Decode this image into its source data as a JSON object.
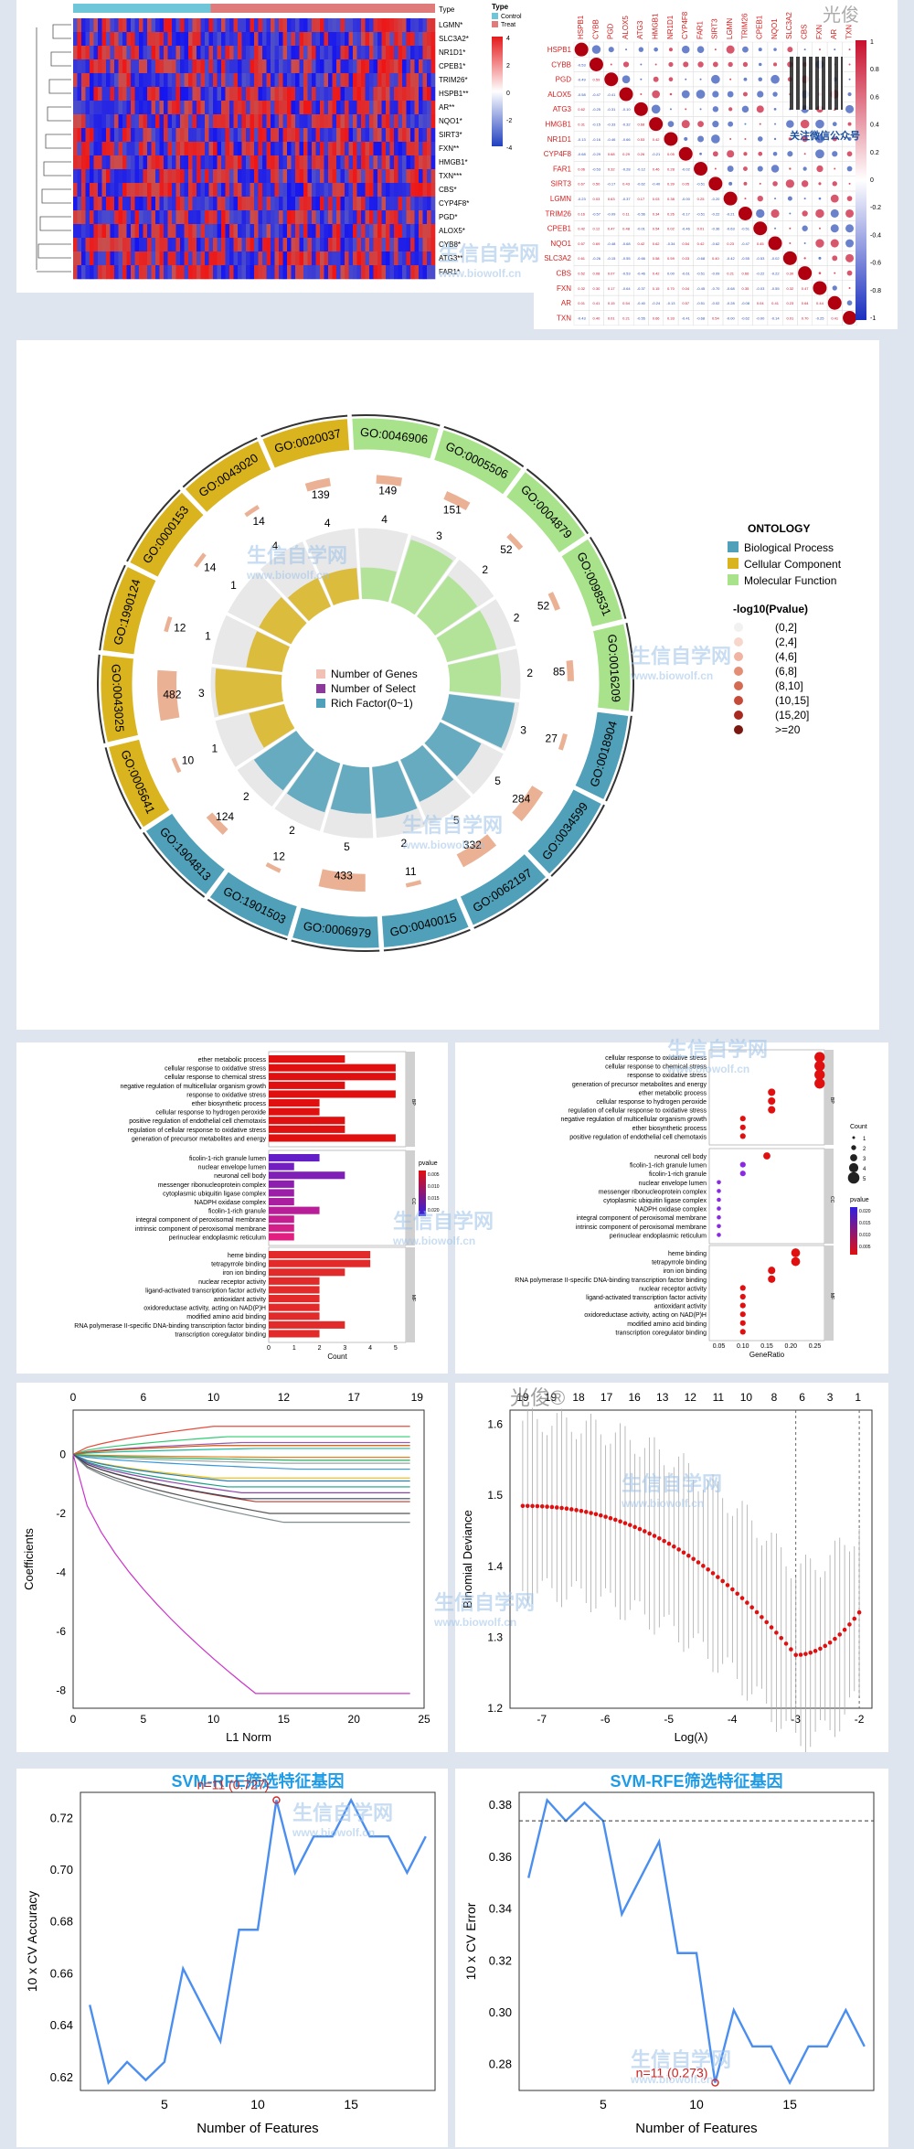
{
  "watermark": {
    "brand": "生信自学网",
    "url": "www.biowolf.cn",
    "author": "光俊",
    "qr_caption": "关注微信公众号"
  },
  "panels": {
    "heatmap": {
      "genes": [
        "LGMN*",
        "SLC3A2*",
        "NR1D1*",
        "CPEB1*",
        "TRIM26*",
        "HSPB1**",
        "AR**",
        "NQO1*",
        "SIRT3*",
        "FXN**",
        "HMGB1*",
        "TXN***",
        "CBS*",
        "CYP4F8*",
        "PGD*",
        "ALOX5*",
        "CYB8*",
        "ATG3**",
        "FAR1*"
      ],
      "type_label": "Type",
      "legend_title": "Type",
      "legend_items": [
        {
          "name": "Control",
          "color": "#6fc6d9"
        },
        {
          "name": "Treat",
          "color": "#e07b7b"
        }
      ],
      "scale_ticks": [
        "4",
        "2",
        "0",
        "-2",
        "-4"
      ]
    },
    "corr": {
      "genes": [
        "HSPB1",
        "CYBB",
        "PGD",
        "ALOX5",
        "ATG3",
        "HMGB1",
        "NR1D1",
        "CYP4F8",
        "FAR1",
        "SIRT3",
        "LGMN",
        "TRIM26",
        "CPEB1",
        "NQO1",
        "SLC3A2",
        "CBS",
        "FXN",
        "AR",
        "TXN"
      ],
      "scale_ticks": [
        "1",
        "0.8",
        "0.6",
        "0.4",
        "0.2",
        "0",
        "-0.2",
        "-0.4",
        "-0.6",
        "-0.8",
        "-1"
      ]
    },
    "circos": {
      "legend_title": "ONTOLOGY",
      "ontology": [
        {
          "name": "Biological Process",
          "color": "#4fa0b8"
        },
        {
          "name": "Cellular Component",
          "color": "#d9b41f"
        },
        {
          "name": "Molecular Function",
          "color": "#a8e28a"
        }
      ],
      "pvalue_title": "-log10(Pvalue)",
      "pvalue_bins": [
        "(0,2]",
        "(2,4]",
        "(4,6]",
        "(6,8]",
        "(8,10]",
        "(10,15]",
        "(15,20]",
        ">=20"
      ],
      "inner_legend": [
        "Number of Genes",
        "Number of Select",
        "Rich Factor(0~1)"
      ],
      "sectors": [
        {
          "id": "GO:0046906",
          "genes": 149,
          "select": 4
        },
        {
          "id": "GO:0005506",
          "genes": 151,
          "select": 3
        },
        {
          "id": "GO:0004879",
          "genes": 52,
          "select": 2
        },
        {
          "id": "GO:0098531",
          "genes": 52,
          "select": 2
        },
        {
          "id": "GO:0016209",
          "genes": 85,
          "select": 2
        },
        {
          "id": "GO:0018904",
          "genes": 27,
          "select": 3
        },
        {
          "id": "GO:0034599",
          "genes": 284,
          "select": 5
        },
        {
          "id": "GO:0062197",
          "genes": 332,
          "select": 5
        },
        {
          "id": "GO:0040015",
          "genes": 11,
          "select": 2
        },
        {
          "id": "GO:0006979",
          "genes": 433,
          "select": 5
        },
        {
          "id": "GO:1901503",
          "genes": 12,
          "select": 2
        },
        {
          "id": "GO:1904813",
          "genes": 124,
          "select": 2
        },
        {
          "id": "GO:0005641",
          "genes": 10,
          "select": 1
        },
        {
          "id": "GO:0043025",
          "genes": 482,
          "select": 3
        },
        {
          "id": "GO:1990124",
          "genes": 12,
          "select": 1
        },
        {
          "id": "GO:0000153",
          "genes": 14,
          "select": 1
        },
        {
          "id": "GO:0043020",
          "genes": 14,
          "select": 4
        },
        {
          "id": "GO:0020037",
          "genes": 139,
          "select": 4
        }
      ]
    },
    "go": {
      "bp_terms": [
        "ether metabolic process",
        "cellular response to oxidative stress",
        "cellular response to chemical stress",
        "negative regulation of multicellular organism growth",
        "response to oxidative stress",
        "ether biosynthetic process",
        "cellular response to hydrogen peroxide",
        "positive regulation of endothelial cell chemotaxis",
        "regulation of cellular response to oxidative stress",
        "generation of precursor metabolites and energy"
      ],
      "cc_terms": [
        "ficolin-1-rich granule lumen",
        "nuclear envelope lumen",
        "neuronal cell body",
        "messenger ribonucleoprotein complex",
        "cytoplasmic ubiquitin ligase complex",
        "NADPH oxidase complex",
        "ficolin-1-rich granule",
        "integral component of peroxisomal membrane",
        "intrinsic component of peroxisomal membrane",
        "perinuclear endoplasmic reticulum"
      ],
      "mf_terms": [
        "heme binding",
        "tetrapyrrole binding",
        "iron ion binding",
        "nuclear receptor activity",
        "ligand-activated transcription factor activity",
        "antioxidant activity",
        "oxidoreductase activity, acting on NAD(P)H",
        "modified amino acid binding",
        "RNA polymerase II-specific DNA-binding transcription factor binding",
        "transcription coregulator binding"
      ],
      "bp_counts": [
        3,
        5,
        5,
        3,
        5,
        2,
        2,
        3,
        3,
        5
      ],
      "cc_counts": [
        2,
        1,
        3,
        1,
        1,
        1,
        2,
        1,
        1,
        1
      ],
      "mf_counts": [
        4,
        4,
        3,
        2,
        2,
        2,
        2,
        2,
        3,
        2
      ],
      "bubble_bp_terms": [
        "cellular response to oxidative stress",
        "cellular response to chemical stress",
        "response to oxidative stress",
        "generation of precursor metabolites and energy",
        "ether metabolic process",
        "cellular response to hydrogen peroxide",
        "regulation of cellular response to oxidative stress",
        "negative regulation of multicellular organism growth",
        "ether biosynthetic process",
        "positive regulation of endothelial cell chemotaxis"
      ],
      "bubble_cc_terms": [
        "neuronal cell body",
        "ficolin-1-rich granule lumen",
        "ficolin-1-rich granule",
        "nuclear envelope lumen",
        "messenger ribonucleoprotein complex",
        "cytoplasmic ubiquitin ligase complex",
        "NADPH oxidase complex",
        "integral component of peroxisomal membrane",
        "intrinsic component of peroxisomal membrane",
        "perinuclear endoplasmic reticulum"
      ],
      "bubble_mf_terms": [
        "heme binding",
        "tetrapyrrole binding",
        "iron ion binding",
        "RNA polymerase II-specific DNA-binding transcription factor binding",
        "nuclear receptor activity",
        "ligand-activated transcription factor activity",
        "antioxidant activity",
        "oxidoreductase activity, acting on NAD(P)H",
        "modified amino acid binding",
        "transcription coregulator binding"
      ],
      "bubble_bp_ratio": [
        0.26,
        0.26,
        0.26,
        0.26,
        0.16,
        0.16,
        0.16,
        0.1,
        0.1,
        0.1
      ],
      "bubble_cc_ratio": [
        0.15,
        0.1,
        0.1,
        0.05,
        0.05,
        0.05,
        0.05,
        0.05,
        0.05,
        0.05
      ],
      "bubble_mf_ratio": [
        0.21,
        0.21,
        0.16,
        0.16,
        0.1,
        0.1,
        0.1,
        0.1,
        0.1,
        0.1
      ],
      "facets": [
        "BP",
        "CC",
        "MF"
      ],
      "bar_xlabel": "Count",
      "bar_xticks": [
        "0",
        "1",
        "2",
        "3",
        "4",
        "5"
      ],
      "bubble_xlabel": "GeneRatio",
      "bubble_xticks": [
        "0.05",
        "0.10",
        "0.15",
        "0.20",
        "0.25"
      ],
      "pvalue_label": "pvalue",
      "bar_pticks": [
        "0.005",
        "0.010",
        "0.015",
        "0.020"
      ],
      "bubble_pticks": [
        "0.020",
        "0.015",
        "0.010",
        "0.005"
      ],
      "count_label": "Count",
      "count_ticks": [
        "1",
        "2",
        "3",
        "4",
        "5"
      ]
    },
    "lasso_path": {
      "xlabel": "L1 Norm",
      "ylabel": "Coefficients",
      "top_ticks": [
        "0",
        "6",
        "10",
        "12",
        "17",
        "19"
      ],
      "xticks": [
        "0",
        "5",
        "10",
        "15",
        "20",
        "25"
      ],
      "yticks": [
        "0",
        "-2",
        "-4",
        "-6",
        "-8"
      ]
    },
    "lasso_cv": {
      "xlabel": "Log(λ)",
      "ylabel": "Binomial Deviance",
      "top_ticks": [
        "19",
        "19",
        "18",
        "17",
        "16",
        "13",
        "12",
        "11",
        "10",
        "8",
        "6",
        "3",
        "1"
      ],
      "xticks": [
        "-7",
        "-6",
        "-5",
        "-4",
        "-3",
        "-2"
      ],
      "yticks": [
        "1.2",
        "1.3",
        "1.4",
        "1.5",
        "1.6"
      ],
      "author_mark": "光俊®"
    },
    "svm_acc": {
      "title": "SVM-RFE筛选特征基因",
      "annotation": "n=11 (0.727)",
      "xlabel": "Number of Features",
      "ylabel": "10 x CV Accuracy",
      "xticks": [
        "5",
        "10",
        "15"
      ],
      "yticks": [
        "0.62",
        "0.64",
        "0.66",
        "0.68",
        "0.70",
        "0.72"
      ]
    },
    "svm_err": {
      "title": "SVM-RFE筛选特征基因",
      "annotation": "n=11 (0.273)",
      "xlabel": "Number of Features",
      "ylabel": "10 x CV Error",
      "xticks": [
        "5",
        "10",
        "15"
      ],
      "yticks": [
        "0.28",
        "0.30",
        "0.32",
        "0.34",
        "0.36",
        "0.38"
      ]
    }
  },
  "chart_data": [
    {
      "type": "line",
      "x": [
        1,
        2,
        3,
        4,
        5,
        6,
        7,
        8,
        9,
        10,
        11,
        12,
        13,
        14,
        15,
        16,
        17,
        18,
        19
      ],
      "series": [
        {
          "values": [
            0.648,
            0.618,
            0.626,
            0.619,
            0.626,
            0.662,
            0.648,
            0.634,
            0.677,
            0.677,
            0.727,
            0.699,
            0.713,
            0.713,
            0.727,
            0.713,
            0.713,
            0.699,
            0.713
          ]
        }
      ],
      "xlabel": "Number of Features",
      "ylabel": "10 x CV Accuracy",
      "title": "SVM-RFE筛选特征基因",
      "xlim": [
        1,
        19
      ],
      "ylim": [
        0.615,
        0.73
      ]
    },
    {
      "type": "line",
      "x": [
        1,
        2,
        3,
        4,
        5,
        6,
        7,
        8,
        9,
        10,
        11,
        12,
        13,
        14,
        15,
        16,
        17,
        18,
        19
      ],
      "series": [
        {
          "values": [
            0.352,
            0.382,
            0.374,
            0.381,
            0.374,
            0.338,
            0.352,
            0.366,
            0.323,
            0.323,
            0.273,
            0.301,
            0.287,
            0.287,
            0.273,
            0.287,
            0.287,
            0.301,
            0.287
          ]
        }
      ],
      "xlabel": "Number of Features",
      "ylabel": "10 x CV Error",
      "title": "SVM-RFE筛选特征基因",
      "xlim": [
        1,
        19
      ],
      "ylim": [
        0.27,
        0.385
      ]
    },
    {
      "type": "line",
      "x": [
        -7.3,
        -7.0,
        -6.5,
        -6.0,
        -5.5,
        -5.0,
        -4.5,
        -4.0,
        -3.5,
        -3.2,
        -3.0,
        -2.6,
        -2.2,
        -2.0
      ],
      "series": [
        {
          "values": [
            1.485,
            1.482,
            1.474,
            1.462,
            1.445,
            1.42,
            1.39,
            1.345,
            1.3,
            1.28,
            1.275,
            1.28,
            1.315,
            1.33
          ]
        }
      ],
      "xlabel": "Log(λ)",
      "ylabel": "Binomial Deviance",
      "xlim": [
        -7.5,
        -1.8
      ],
      "ylim": [
        1.2,
        1.62
      ]
    }
  ]
}
